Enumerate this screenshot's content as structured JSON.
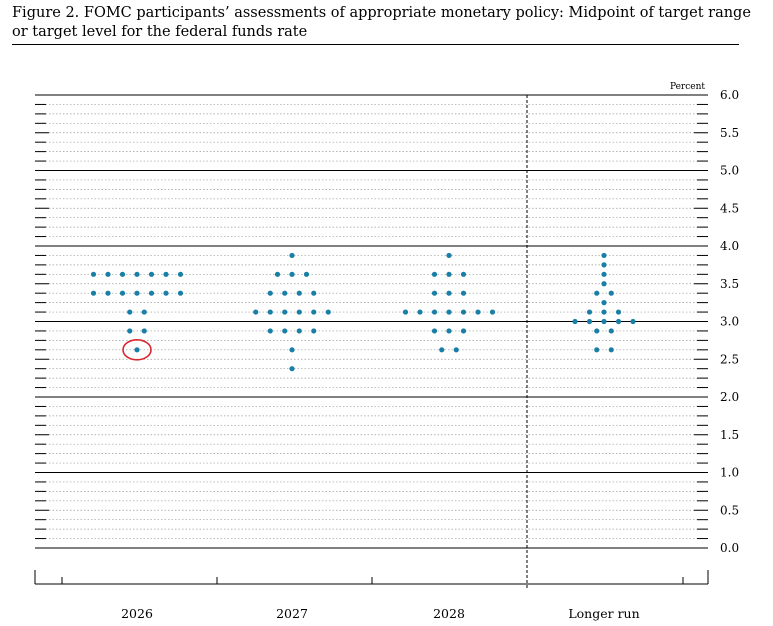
{
  "title": "Figure 2. FOMC participants’ assessments of appropriate monetary policy: Midpoint of target range or target level for the federal funds rate",
  "chart_data": {
    "type": "scatter",
    "title": "Figure 2. FOMC participants’ assessments of appropriate monetary policy: Midpoint of target range or target level for the federal funds rate",
    "ylabel": "Percent",
    "ylim": [
      0,
      6.0
    ],
    "yticks": [
      "6.0",
      "5.5",
      "5.0",
      "4.5",
      "4.0",
      "3.5",
      "3.0",
      "2.5",
      "2.0",
      "1.5",
      "1.0",
      "0.5",
      "0.0"
    ],
    "ytick_values": [
      6.0,
      5.5,
      5.0,
      4.5,
      4.0,
      3.5,
      3.0,
      2.5,
      2.0,
      1.5,
      1.0,
      0.5,
      0.0
    ],
    "grid": true,
    "categories": [
      "2026",
      "2027",
      "2028",
      "Longer run"
    ],
    "dot_color": "#1a7fa6",
    "highlight_color": "#d9272e",
    "distribution": [
      {
        "category": "2026",
        "counts": [
          {
            "value": 3.625,
            "count": 7
          },
          {
            "value": 3.375,
            "count": 7
          },
          {
            "value": 3.125,
            "count": 2
          },
          {
            "value": 2.875,
            "count": 2
          },
          {
            "value": 2.625,
            "count": 1
          }
        ]
      },
      {
        "category": "2027",
        "counts": [
          {
            "value": 3.875,
            "count": 1
          },
          {
            "value": 3.625,
            "count": 3
          },
          {
            "value": 3.375,
            "count": 4
          },
          {
            "value": 3.125,
            "count": 6
          },
          {
            "value": 2.875,
            "count": 4
          },
          {
            "value": 2.625,
            "count": 1
          },
          {
            "value": 2.375,
            "count": 1
          }
        ]
      },
      {
        "category": "2028",
        "counts": [
          {
            "value": 3.875,
            "count": 1
          },
          {
            "value": 3.625,
            "count": 3
          },
          {
            "value": 3.375,
            "count": 3
          },
          {
            "value": 3.125,
            "count": 7
          },
          {
            "value": 2.875,
            "count": 3
          },
          {
            "value": 2.625,
            "count": 2
          }
        ]
      },
      {
        "category": "Longer run",
        "counts": [
          {
            "value": 3.875,
            "count": 1
          },
          {
            "value": 3.75,
            "count": 1
          },
          {
            "value": 3.625,
            "count": 1
          },
          {
            "value": 3.5,
            "count": 1
          },
          {
            "value": 3.375,
            "count": 2
          },
          {
            "value": 3.25,
            "count": 1
          },
          {
            "value": 3.125,
            "count": 3
          },
          {
            "value": 3.0,
            "count": 5
          },
          {
            "value": 2.875,
            "count": 2
          },
          {
            "value": 2.625,
            "count": 2
          }
        ]
      }
    ],
    "highlight": {
      "category": "2026",
      "value": 2.625
    }
  }
}
